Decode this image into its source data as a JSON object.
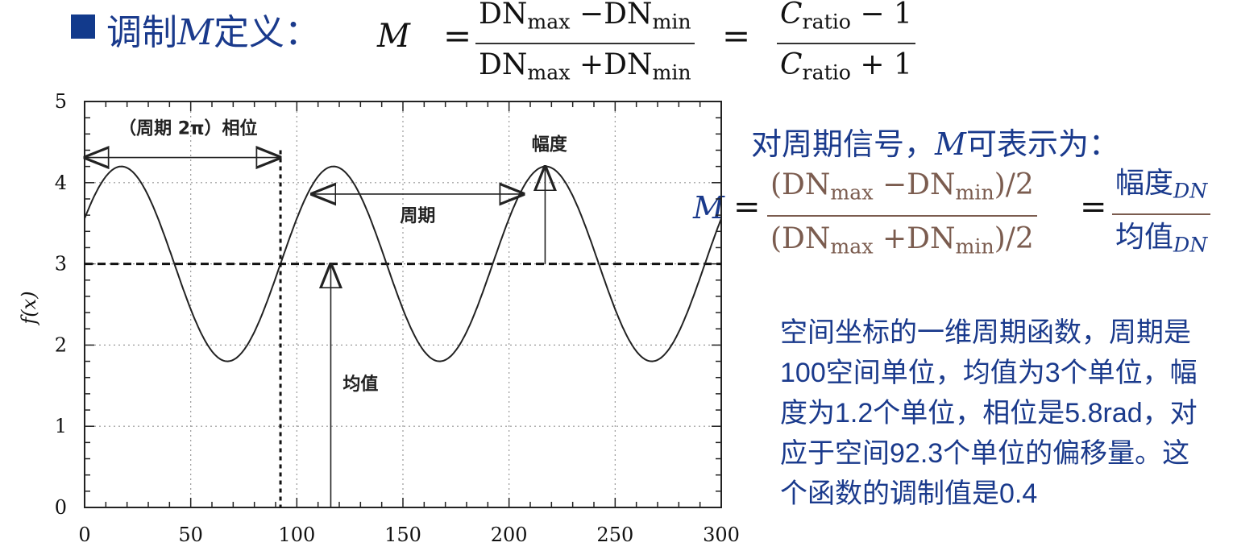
{
  "heading": {
    "text": "调制",
    "var": "M",
    "suffix": "定义："
  },
  "formula1": {
    "lhs": "M",
    "eq1": "=",
    "dn": "DN",
    "max": "max",
    "min": "min",
    "minus": "−",
    "plus": "+",
    "eq2": "=",
    "c": "C",
    "ratio": "ratio",
    "minus1": "− 1",
    "plus1": "+ 1"
  },
  "periodic": {
    "prefix": "对周期信号，",
    "var": "M",
    "suffix": "可表示为："
  },
  "formula2": {
    "lhs": "M",
    "eq": "=",
    "open": "(",
    "close": ")/2",
    "amp": "幅度",
    "mean": "均值",
    "sub": "DN"
  },
  "note": "空间坐标的一维周期函数，周期是100空间单位，均值为3个单位，幅度为1.2个单位，相位是5.8rad，对应于空间92.3个单位的偏移量。这个函数的调制值是0.4",
  "chart_data": {
    "type": "line",
    "ylabel": "f(x)",
    "xlim": [
      0,
      300
    ],
    "ylim": [
      0,
      5
    ],
    "xticks": [
      "0",
      "50",
      "100",
      "150",
      "200",
      "250",
      "300"
    ],
    "yticks": [
      "0",
      "1",
      "2",
      "3",
      "4",
      "5"
    ],
    "grid": true,
    "mean": 3,
    "amplitude": 1.2,
    "period": 100,
    "phase_offset": 92.3,
    "annotations": {
      "phase": "（周期 2π）相位",
      "amplitude": "幅度",
      "period": "周期",
      "mean": "均值"
    }
  }
}
